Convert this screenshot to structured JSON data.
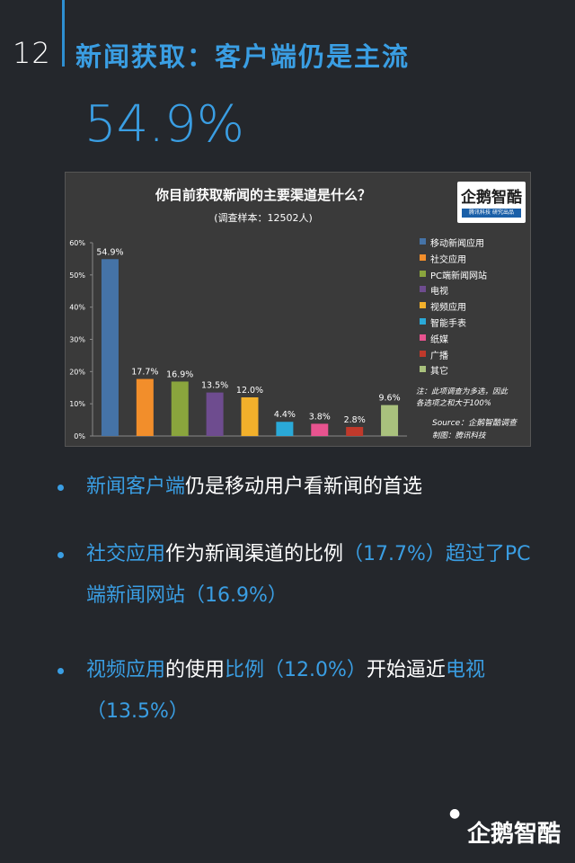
{
  "header": {
    "page_number": "12",
    "title": "新闻获取：客户端仍是主流"
  },
  "highlight": {
    "big_number": "54.9%"
  },
  "chart_data": {
    "type": "bar",
    "title": "你目前获取新闻的主要渠道是什么？",
    "subtitle": "(调查样本：12502人)",
    "categories": [
      "移动新闻应用",
      "社交应用",
      "PC端新闻网站",
      "电视",
      "视频应用",
      "智能手表",
      "纸媒",
      "广播",
      "其它"
    ],
    "values": [
      54.9,
      17.7,
      16.9,
      13.5,
      12.0,
      4.4,
      3.8,
      2.8,
      9.6
    ],
    "value_labels": [
      "54.9%",
      "17.7%",
      "16.9%",
      "13.5%",
      "12.0%",
      "4.4%",
      "3.8%",
      "2.8%",
      "9.6%"
    ],
    "colors": [
      "#4573a7",
      "#f28e2b",
      "#8aa53d",
      "#6e4c8f",
      "#f2b02b",
      "#2aa9d8",
      "#e8538f",
      "#c0392b",
      "#a9c17d"
    ],
    "ylim": [
      0,
      60
    ],
    "yticks": [
      "0%",
      "10%",
      "20%",
      "30%",
      "40%",
      "50%",
      "60%"
    ],
    "legend": "right",
    "grid": false,
    "note_lines": [
      "注：此项调查为多选，因此",
      "各选项之和大于100%"
    ],
    "source": "Source：企鹅智酷调查",
    "maker": "制图：腾讯科技",
    "logo": {
      "name": "企鹅智酷",
      "strip": "腾讯科技 研究出品"
    }
  },
  "bullets": [
    {
      "segments": [
        {
          "text": "新闻客户端",
          "hl": true
        },
        {
          "text": "仍是移动用户看新闻的首选",
          "hl": false
        }
      ]
    },
    {
      "segments": [
        {
          "text": "社交应用",
          "hl": true
        },
        {
          "text": "作为新闻渠道的比例",
          "hl": false
        },
        {
          "text": "（17.7%）超过了PC端新闻网站（16.9%）",
          "hl": true
        }
      ]
    },
    {
      "segments": [
        {
          "text": "视频应用",
          "hl": true
        },
        {
          "text": "的使用",
          "hl": false
        },
        {
          "text": "比例（12.0%）",
          "hl": true
        },
        {
          "text": "开始逼近",
          "hl": false
        },
        {
          "text": "电视（13.5%）",
          "hl": true
        }
      ]
    }
  ],
  "footer": {
    "logo": "企鹅智酷"
  }
}
